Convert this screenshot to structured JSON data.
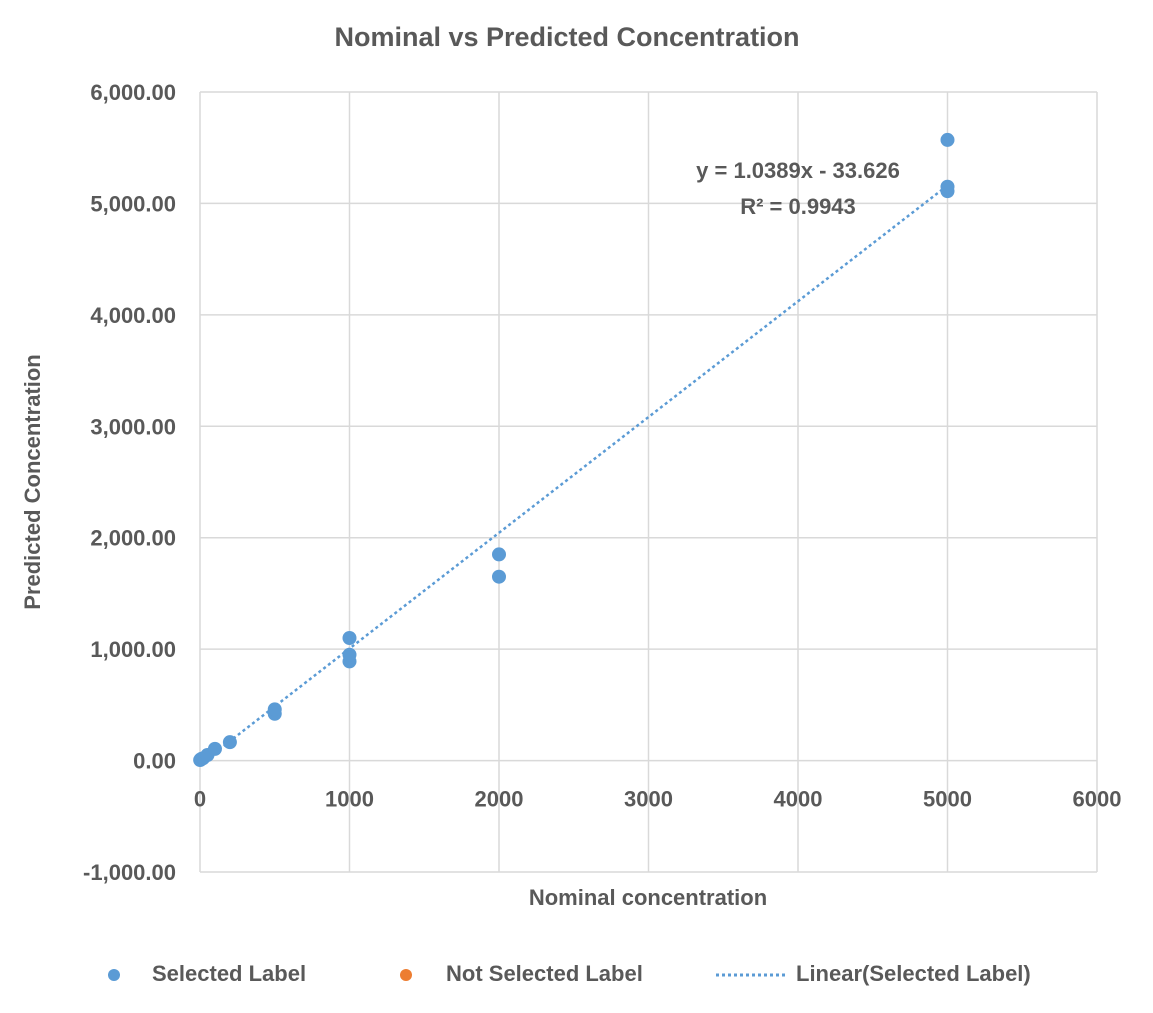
{
  "chart_data": {
    "type": "scatter",
    "title": "Nominal vs Predicted Concentration",
    "xlabel": "Nominal concentration",
    "ylabel": "Predicted Concentration",
    "xlim": [
      0,
      6000
    ],
    "ylim": [
      -1000,
      6000
    ],
    "x_ticks": [
      0,
      1000,
      2000,
      3000,
      4000,
      5000,
      6000
    ],
    "x_tick_labels": [
      "0",
      "1000",
      "2000",
      "3000",
      "4000",
      "5000",
      "6000"
    ],
    "y_ticks": [
      -1000,
      0,
      1000,
      2000,
      3000,
      4000,
      5000,
      6000
    ],
    "y_tick_labels": [
      "-1,000.00",
      "0.00",
      "1,000.00",
      "2,000.00",
      "3,000.00",
      "4,000.00",
      "5,000.00",
      "6,000.00"
    ],
    "grid": true,
    "legend_position": "bottom",
    "series": [
      {
        "name": "Selected Label",
        "color": "#5B9BD5",
        "points": [
          {
            "x": 1,
            "y": 5
          },
          {
            "x": 5,
            "y": 10
          },
          {
            "x": 10,
            "y": 15
          },
          {
            "x": 20,
            "y": 20
          },
          {
            "x": 50,
            "y": 50
          },
          {
            "x": 100,
            "y": 105
          },
          {
            "x": 200,
            "y": 165
          },
          {
            "x": 500,
            "y": 420
          },
          {
            "x": 500,
            "y": 460
          },
          {
            "x": 1000,
            "y": 890
          },
          {
            "x": 1000,
            "y": 950
          },
          {
            "x": 1000,
            "y": 1100
          },
          {
            "x": 2000,
            "y": 1650
          },
          {
            "x": 2000,
            "y": 1850
          },
          {
            "x": 5000,
            "y": 5110
          },
          {
            "x": 5000,
            "y": 5150
          },
          {
            "x": 5000,
            "y": 5570
          }
        ]
      },
      {
        "name": "Not Selected Label",
        "color": "#ED7D31",
        "points": []
      }
    ],
    "trendline": {
      "name": "Linear(Selected Label)",
      "color": "#5B9BD5",
      "slope": 1.0389,
      "intercept": -33.626,
      "x_range": [
        0,
        5000
      ],
      "equation_label": "y = 1.0389x - 33.626",
      "r2_label": "R² = 0.9943"
    },
    "gridline_color": "#D9D9D9"
  }
}
